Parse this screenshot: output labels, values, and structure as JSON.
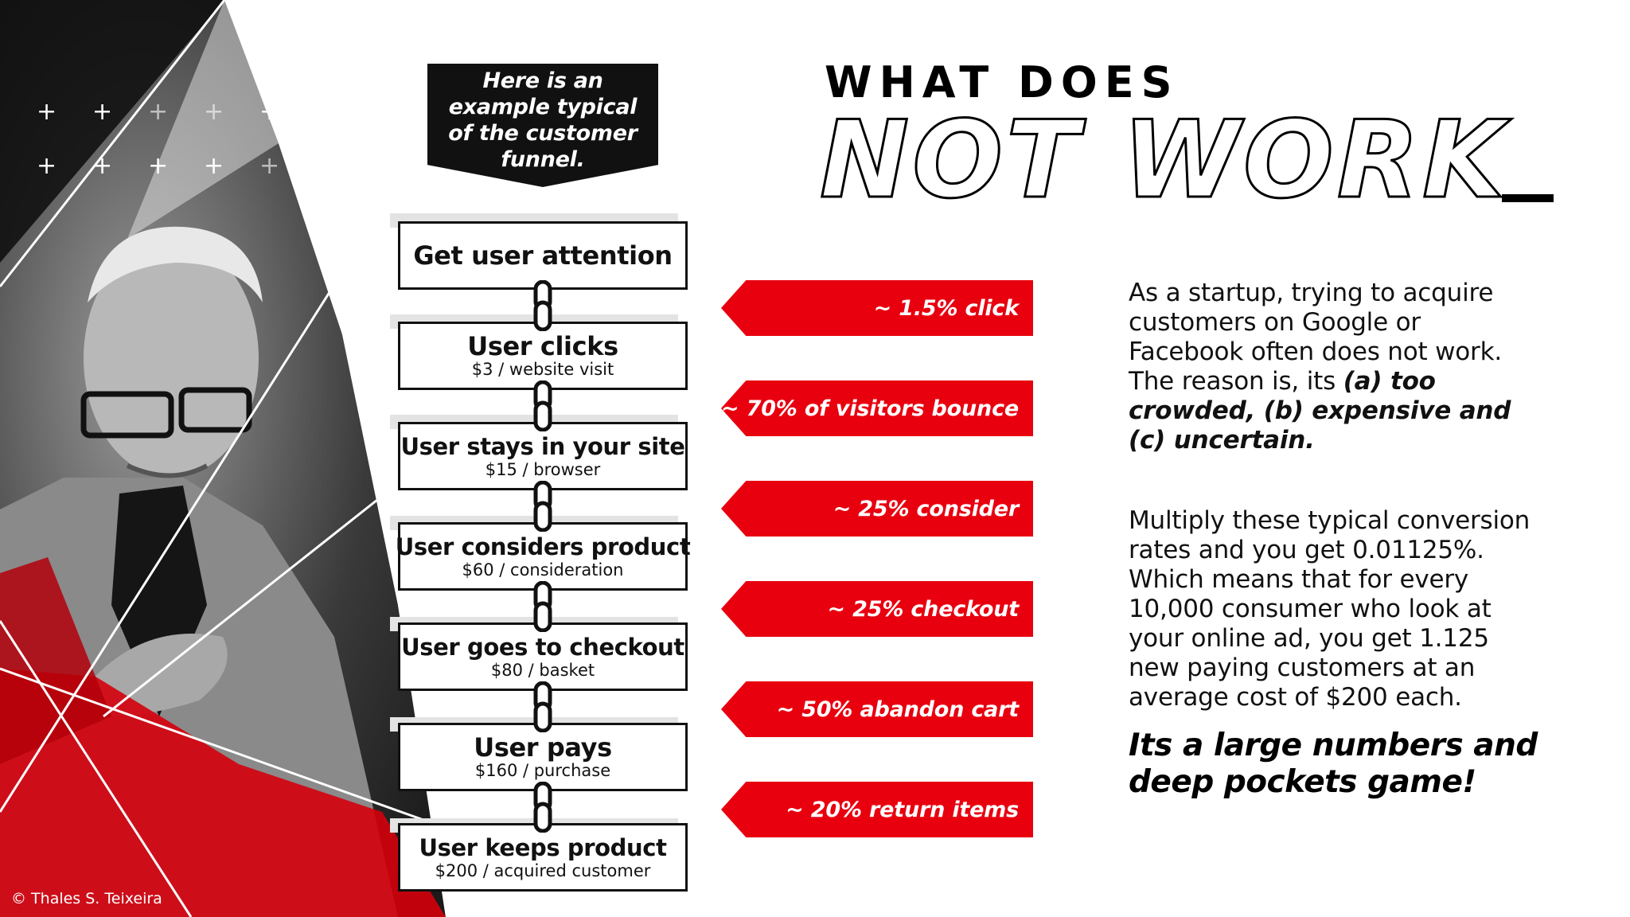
{
  "callout": {
    "text": "Here is an example typical of the customer funnel."
  },
  "heading": {
    "line1": "WHAT DOES",
    "line2": "NOT WORK"
  },
  "funnel": [
    {
      "label": "Get user attention",
      "sub": ""
    },
    {
      "label": "User clicks",
      "sub": "$3 / website visit"
    },
    {
      "label": "User stays in your site",
      "sub": "$15 / browser"
    },
    {
      "label": "User considers product",
      "sub": "$60 / consideration"
    },
    {
      "label": "User goes to checkout",
      "sub": "$80 / basket"
    },
    {
      "label": "User pays",
      "sub": "$160 / purchase"
    },
    {
      "label": "User keeps product",
      "sub": "$200 / acquired customer"
    }
  ],
  "rates": [
    "~ 1.5% click",
    "~ 70% of visitors bounce",
    "~ 25% consider",
    "~ 25% checkout",
    "~ 50% abandon cart",
    "~ 20% return items"
  ],
  "paragraph1": {
    "plain": "As a startup, trying to acquire customers on Google or Facebook often does not work. The reason is, its ",
    "emphasis": "(a) too crowded, (b) expensive and (c) uncertain."
  },
  "paragraph2": "Multiply these typical conversion rates and you get 0.01125%. Which means that for every 10,000 consumer who look at your online ad,  you get 1.125 new paying customers at an average cost of $200 each.",
  "tagline": "Its a large numbers and deep pockets game!",
  "copyright": "© Thales S. Teixeira",
  "colors": {
    "accent_red": "#e8000f",
    "ink": "#111111",
    "background": "#ffffff"
  }
}
